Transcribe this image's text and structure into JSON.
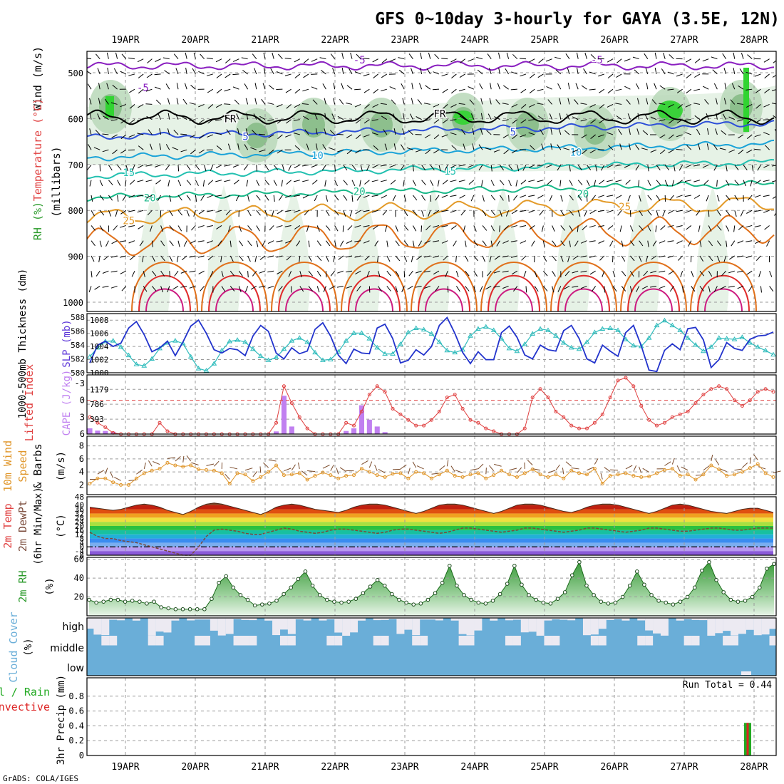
{
  "page": {
    "title": "GFS 0~10day 3-hourly for GAYA (3.5E, 12N)",
    "credit": "GrADS: COLA/IGES"
  },
  "colors": {
    "wind_barb": "#000000",
    "rh_fill_light": "#e3f1e3",
    "rh_fill_mid": "#b8d8b8",
    "rh_fill_dark": "#7fb87f",
    "rh_fill_bright": "#31d431",
    "thickness_line": "#2fbcbc",
    "slp_line": "#2233cc",
    "cape_bar": "#c080f0",
    "lifted_index": "#e04040",
    "wind10m": "#e0962a",
    "rh2m_fill": "#5cb85c",
    "cloud_fill": "#6aaed8",
    "cloud_clear": "#eceaf2",
    "precip_total": "#22aa22",
    "precip_conv": "#dd2222"
  },
  "dates": [
    "19APR",
    "20APR",
    "21APR",
    "22APR",
    "23APR",
    "24APR",
    "25APR",
    "26APR",
    "27APR",
    "28APR"
  ],
  "panels": {
    "profile": {
      "left_labels": [
        "Wind (m/s)",
        "Temperature (°C)",
        "RH (%)"
      ],
      "axis_label": "(millibars)",
      "pressure_levels": [
        500,
        600,
        700,
        800,
        900,
        1000
      ],
      "temp_contour_labels": [
        {
          "text": "-5",
          "p": 540,
          "c": 0.8
        },
        {
          "text": "-5",
          "p": 480,
          "c": 3.9
        },
        {
          "text": "-5",
          "p": 480,
          "c": 7.3
        },
        {
          "text": "FR",
          "p": 608,
          "c": 2.05
        },
        {
          "text": "FR",
          "p": 597,
          "c": 5.05
        },
        {
          "text": "5",
          "p": 647,
          "c": 2.27
        },
        {
          "text": "5",
          "p": 637,
          "c": 6.1
        },
        {
          "text": "10",
          "p": 688,
          "c": 3.3
        },
        {
          "text": "10",
          "p": 681,
          "c": 7.0
        },
        {
          "text": "15",
          "p": 725,
          "c": 0.6
        },
        {
          "text": "15",
          "p": 722,
          "c": 5.2
        },
        {
          "text": "20",
          "p": 780,
          "c": 0.9
        },
        {
          "text": "20",
          "p": 766,
          "c": 3.9
        },
        {
          "text": "20",
          "p": 772,
          "c": 7.1
        },
        {
          "text": "25",
          "p": 830,
          "c": 0.6
        },
        {
          "text": "25",
          "p": 800,
          "c": 7.7
        }
      ]
    },
    "thickness_slp": {
      "left_label": "1000-500mb Thickness (dm)",
      "right_label": "SLP (mb)",
      "thickness_ticks": [
        580,
        582,
        584,
        586,
        588
      ],
      "slp_ticks": [
        1000,
        1002,
        1004,
        1006,
        1008
      ],
      "slp_bottom_label": "1000"
    },
    "cape_li": {
      "left_label": "Lifted Index",
      "right_label": "CAPE (J/kg)",
      "li_ticks": [
        "-3",
        "0",
        "3",
        "6"
      ],
      "cape_ticks": [
        393,
        786,
        1179
      ]
    },
    "wind10m": {
      "left_label": "10m Wind Speed & Barbs",
      "axis_label": "(m/s)",
      "ticks": [
        2,
        4,
        6,
        8
      ]
    },
    "temp2m": {
      "left_label": "2m Temp 2m DewPt (6hr Min/Max) (°C)",
      "ticks": [
        -8,
        0,
        8,
        16,
        24,
        32,
        40,
        48
      ],
      "extra_ticks": [
        -4,
        4,
        12,
        20,
        28,
        36
      ]
    },
    "rh2m": {
      "left_label": "2m RH",
      "axis_label": "(%)",
      "ticks": [
        20,
        40,
        60
      ]
    },
    "cloud": {
      "left_label": "Cloud Cover (%)",
      "levels": [
        "high",
        "middle",
        "low"
      ]
    },
    "precip": {
      "left_label_1": "Total / Rain",
      "left_label_2": "Convective",
      "axis_label": "3hr Precip (mm)",
      "run_total_text": "Run Total = 0.44",
      "ticks": [
        0,
        0.2,
        0.4,
        0.6,
        0.8
      ]
    }
  },
  "chart_data": [
    {
      "type": "line",
      "name": "1000-500mb Thickness",
      "y_unit": "dm",
      "ylim": [
        580,
        588.5
      ],
      "x_unit": "3-hourly steps from 18APR 18Z",
      "y": [
        582.3,
        583.6,
        584.5,
        584.6,
        583.7,
        582.5,
        581.2,
        581.0,
        582.0,
        583.5,
        584.3,
        584.6,
        584.2,
        582.3,
        580.6,
        580.3,
        581.3,
        583.2,
        584.5,
        584.7,
        584.4,
        583.4,
        582.4,
        581.8,
        582.2,
        583.4,
        584.6,
        585.0,
        584.4,
        582.9,
        581.8,
        581.9,
        583.0,
        584.6,
        585.7,
        585.7,
        584.9,
        583.6,
        582.7,
        582.7,
        584.1,
        585.8,
        586.4,
        586.2,
        585.6,
        584.4,
        583.2,
        582.9,
        583.3,
        585.3,
        586.3,
        586.6,
        586.1,
        584.9,
        583.5,
        583.1,
        584.1,
        585.6,
        586.3,
        586.1,
        585.3,
        584.3,
        583.6,
        583.4,
        584.4,
        585.8,
        586.3,
        586.4,
        586.1,
        584.8,
        583.9,
        583.8,
        585.0,
        586.8,
        587.5,
        586.8,
        586.1,
        585.0,
        584.0,
        583.1,
        583.7,
        585.0,
        584.9,
        584.8,
        585.1,
        584.3,
        583.7,
        583.2,
        582.6
      ]
    },
    {
      "type": "line",
      "name": "SLP",
      "y_unit": "mb",
      "ylim": [
        1000,
        1009
      ],
      "x_unit": "3-hourly steps from 18APR 18Z",
      "y": [
        1001.5,
        1004.2,
        1004.8,
        1004.0,
        1004.5,
        1006.8,
        1007.8,
        1005.8,
        1003.2,
        1003.8,
        1004.8,
        1002.6,
        1004.7,
        1007.1,
        1008.0,
        1006.0,
        1003.5,
        1003.0,
        1003.7,
        1003.5,
        1002.6,
        1005.6,
        1007.2,
        1006.3,
        1003.0,
        1002.1,
        1003.8,
        1002.9,
        1003.3,
        1006.6,
        1007.6,
        1005.6,
        1002.7,
        1001.4,
        1003.6,
        1003.0,
        1002.9,
        1006.8,
        1007.4,
        1005.2,
        1001.5,
        1001.9,
        1003.5,
        1002.7,
        1004.0,
        1007.2,
        1008.4,
        1006.0,
        1003.1,
        1001.4,
        1003.2,
        1002.0,
        1002.0,
        1006.1,
        1007.1,
        1005.4,
        1002.7,
        1002.1,
        1004.2,
        1003.5,
        1003.3,
        1006.4,
        1007.2,
        1005.2,
        1002.1,
        1001.5,
        1004.2,
        1003.3,
        1002.5,
        1006.1,
        1007.2,
        1004.1,
        1000.4,
        1000.2,
        1003.4,
        1004.4,
        1003.5,
        1006.7,
        1006.9,
        1005.0,
        1000.8,
        1002.0,
        1004.6,
        1003.7,
        1003.4,
        1005.1,
        1005.6,
        1005.7,
        1006.2
      ]
    },
    {
      "type": "bar",
      "name": "CAPE",
      "y_unit": "J/kg",
      "ylim": [
        0,
        1560
      ],
      "x_unit": "3-hourly steps from 18APR 18Z",
      "values": [
        150,
        90,
        80,
        60,
        0,
        0,
        0,
        0,
        0,
        0,
        0,
        0,
        0,
        0,
        0,
        0,
        0,
        0,
        0,
        0,
        0,
        0,
        0,
        0,
        70,
        1010,
        200,
        0,
        0,
        0,
        0,
        0,
        0,
        80,
        150,
        760,
        380,
        200,
        50,
        0,
        0,
        0,
        0,
        0,
        0,
        0,
        0,
        0,
        0,
        0,
        0,
        0,
        0,
        0,
        0,
        0,
        0,
        0,
        0,
        0,
        0,
        0,
        0,
        0,
        0,
        0,
        0,
        0,
        0,
        0,
        0,
        0,
        0,
        0,
        0,
        0,
        0,
        0,
        0,
        0,
        0,
        0,
        0,
        0,
        0,
        0,
        0,
        0,
        0
      ]
    },
    {
      "type": "line",
      "name": "Lifted Index",
      "y_unit": "°C",
      "ylim": [
        6,
        -4.5
      ],
      "x_unit": "3-hourly steps from 18APR 18Z",
      "y": [
        3.0,
        4.0,
        4.8,
        5.8,
        6.0,
        6.0,
        6.0,
        6.0,
        6.0,
        4.0,
        5.5,
        6.0,
        6.0,
        6.0,
        6.0,
        6.0,
        6.0,
        6.0,
        6.0,
        6.0,
        6.0,
        6.0,
        6.0,
        6.0,
        4.0,
        -2.5,
        0.5,
        3.0,
        5.0,
        6.0,
        6.0,
        6.0,
        6.0,
        4.0,
        4.5,
        2.0,
        -1.0,
        -2.5,
        -1.5,
        1.5,
        2.5,
        3.5,
        4.5,
        4.5,
        3.5,
        2.0,
        -0.5,
        -1.0,
        1.5,
        3.5,
        4.0,
        5.0,
        5.5,
        6.0,
        6.0,
        6.0,
        5.0,
        -0.5,
        -2.0,
        -0.5,
        2.0,
        3.0,
        4.5,
        5.0,
        5.0,
        4.0,
        2.5,
        -0.5,
        -3.5,
        -4.0,
        -2.5,
        1.0,
        3.5,
        4.5,
        4.0,
        3.0,
        2.5,
        2.0,
        0.5,
        -1.0,
        -2.0,
        -2.5,
        -2.0,
        0.0,
        1.0,
        0.0,
        -1.5,
        -2.0,
        -1.5
      ]
    },
    {
      "type": "line",
      "name": "10m Wind Speed",
      "y_unit": "m/s",
      "ylim": [
        0.5,
        9.5
      ],
      "x_unit": "3-hourly steps from 18APR 18Z",
      "y": [
        2.2,
        3.0,
        3.0,
        2.4,
        2.0,
        2.0,
        3.0,
        3.8,
        4.2,
        4.5,
        5.4,
        5.0,
        4.8,
        5.0,
        4.4,
        4.3,
        4.2,
        3.8,
        2.2,
        3.8,
        3.6,
        2.6,
        3.2,
        4.0,
        5.0,
        3.5,
        3.6,
        3.8,
        2.8,
        3.4,
        3.9,
        3.5,
        3.0,
        3.4,
        3.5,
        4.5,
        4.0,
        3.5,
        3.2,
        3.7,
        3.8,
        3.0,
        4.0,
        3.8,
        3.0,
        3.6,
        4.2,
        3.4,
        3.2,
        3.6,
        3.8,
        3.0,
        3.5,
        4.2,
        3.6,
        3.2,
        3.8,
        4.4,
        3.6,
        3.2,
        3.6,
        3.0,
        4.2,
        3.8,
        3.6,
        4.5,
        2.2,
        3.4,
        3.6,
        3.8,
        3.4,
        3.2,
        3.3,
        3.8,
        4.3,
        4.5,
        3.4,
        3.6,
        2.8,
        3.6,
        5.0,
        4.4,
        3.4,
        3.6,
        4.0,
        4.6,
        5.2,
        3.8,
        3.2
      ]
    },
    {
      "type": "area",
      "name": "2m Temperature",
      "y_unit": "°C",
      "ylim": [
        -8,
        48
      ],
      "x_unit": "3-hourly steps from 18APR 18Z",
      "y": [
        38,
        37,
        36,
        35,
        36,
        38,
        40,
        41,
        40,
        38,
        35,
        33,
        31,
        34,
        38,
        41,
        42,
        41,
        39,
        37,
        35,
        33,
        31,
        34,
        38,
        40,
        41,
        40,
        38,
        36,
        35,
        34,
        33,
        35,
        38,
        40,
        41,
        41,
        40,
        38,
        36,
        34,
        32,
        34,
        37,
        40,
        41,
        41,
        40,
        38,
        36,
        34,
        32,
        34,
        37,
        40,
        41,
        41,
        40,
        38,
        36,
        34,
        33,
        35,
        38,
        40,
        41,
        41,
        40,
        38,
        36,
        34,
        32,
        34,
        37,
        40,
        41,
        40,
        38,
        36,
        34,
        33,
        32,
        34,
        36,
        37,
        37,
        35,
        33
      ]
    },
    {
      "type": "line",
      "name": "2m DewPt",
      "y_unit": "°C",
      "ylim": [
        -8,
        48
      ],
      "x_unit": "3-hourly steps from 18APR 18Z",
      "y": [
        14,
        10,
        8,
        8,
        6,
        5,
        4,
        2,
        0,
        -2,
        -4,
        -6,
        -8,
        -8,
        0,
        10,
        16,
        17,
        16,
        15,
        13,
        12,
        12,
        14,
        16,
        18,
        17,
        15,
        14,
        13,
        14,
        16,
        17,
        17,
        16,
        15,
        14,
        13,
        14,
        16,
        17,
        17,
        16,
        15,
        14,
        13,
        14,
        16,
        18,
        18,
        17,
        16,
        15,
        14,
        15,
        16,
        18,
        18,
        17,
        16,
        15,
        14,
        15,
        16,
        18,
        18,
        17,
        16,
        15,
        14,
        15,
        16,
        18,
        18,
        17,
        16,
        15,
        15,
        16,
        17,
        18,
        18,
        17,
        16,
        16,
        17,
        18,
        18,
        18
      ]
    },
    {
      "type": "area",
      "name": "2m RH",
      "y_unit": "%",
      "ylim": [
        0,
        62
      ],
      "x_unit": "3-hourly steps from 18APR 18Z",
      "y": [
        17,
        14,
        15,
        17,
        17,
        15,
        16,
        15,
        13,
        15,
        9,
        8,
        7,
        7,
        7,
        7,
        7,
        18,
        35,
        42,
        30,
        22,
        17,
        11,
        12,
        13,
        16,
        23,
        30,
        39,
        47,
        32,
        22,
        17,
        15,
        14,
        15,
        18,
        24,
        31,
        38,
        32,
        23,
        17,
        14,
        12,
        13,
        17,
        24,
        35,
        53,
        32,
        22,
        17,
        14,
        13,
        16,
        23,
        34,
        53,
        33,
        22,
        17,
        14,
        13,
        18,
        25,
        43,
        57,
        32,
        22,
        15,
        13,
        14,
        20,
        32,
        47,
        33,
        22,
        16,
        14,
        12,
        15,
        20,
        30,
        48,
        57,
        38,
        25,
        17,
        15,
        16,
        20,
        30,
        50,
        55
      ]
    },
    {
      "type": "bar",
      "name": "3hr Precip Total/Rain",
      "y_unit": "mm",
      "ylim": [
        0,
        1
      ],
      "x": [
        "28APR 00Z"
      ],
      "values": [
        0.44
      ]
    }
  ]
}
